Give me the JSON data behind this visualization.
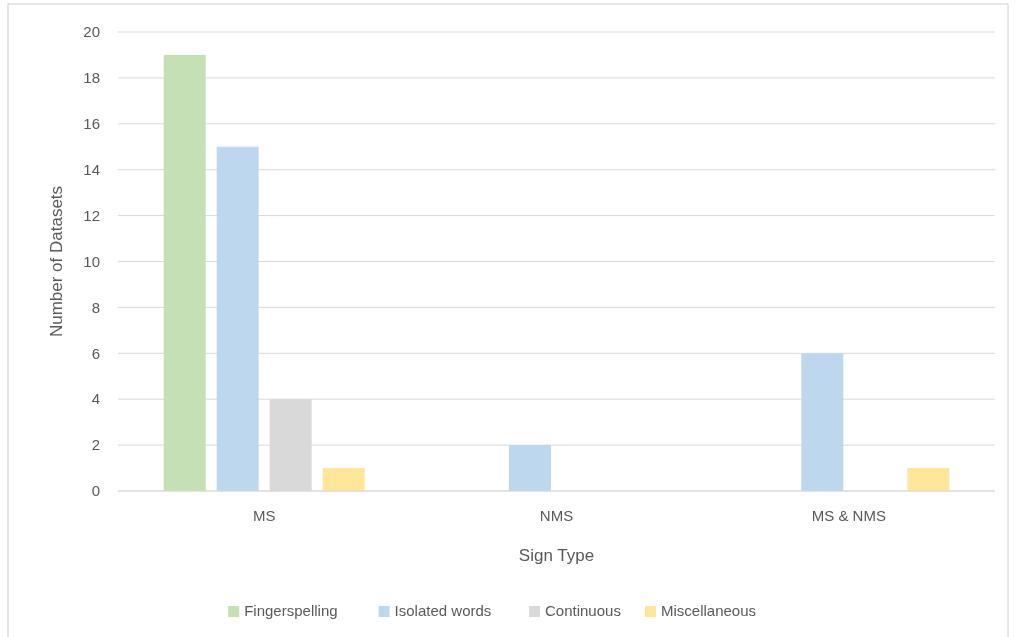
{
  "chart_data": {
    "type": "bar",
    "xlabel": "Sign Type",
    "ylabel": "Number of Datasets",
    "categories": [
      "MS",
      "NMS",
      "MS & NMS"
    ],
    "series": [
      {
        "name": "Fingerspelling",
        "color": "#c5e0b4",
        "values": [
          19,
          0,
          0
        ]
      },
      {
        "name": "Isolated words",
        "color": "#bdd7ee",
        "values": [
          15,
          2,
          6
        ]
      },
      {
        "name": "Continuous",
        "color": "#d9d9d9",
        "values": [
          4,
          0,
          0
        ]
      },
      {
        "name": "Miscellaneous",
        "color": "#ffe699",
        "values": [
          1,
          0,
          1
        ]
      }
    ],
    "ylim": [
      0,
      20
    ],
    "yticks": [
      0,
      2,
      4,
      6,
      8,
      10,
      12,
      14,
      16,
      18,
      20
    ],
    "grid": "y",
    "legend": "bottom"
  }
}
